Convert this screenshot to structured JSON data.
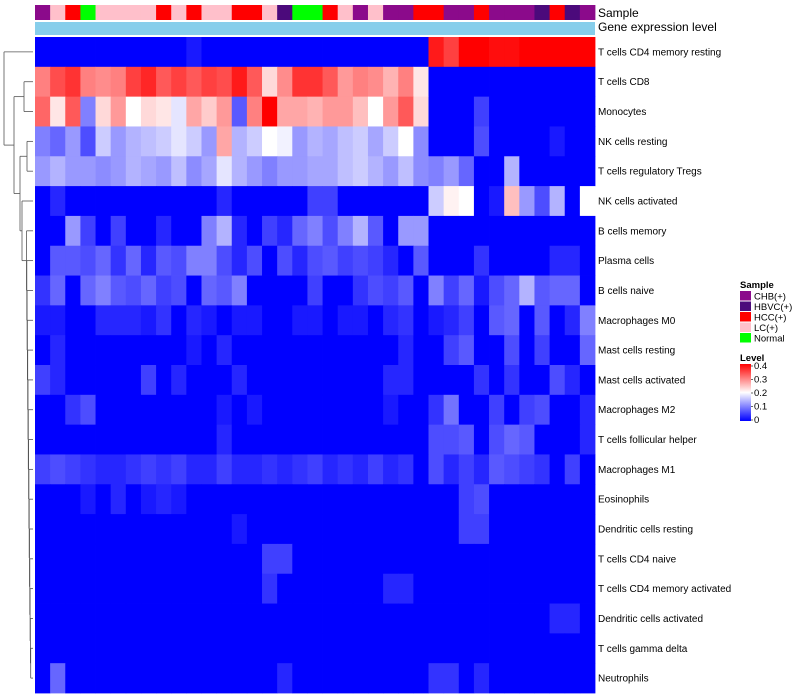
{
  "chart_data": {
    "type": "heatmap",
    "annotation_row_labels": [
      "Sample",
      "Gene expression level"
    ],
    "rows": [
      "T cells CD4 memory resting",
      "T cells CD8",
      "Monocytes",
      "NK cells resting",
      "T cells regulatory  Tregs",
      "NK cells activated",
      "B cells memory",
      "Plasma cells",
      "B cells naive",
      "Macrophages M0",
      "Mast cells resting",
      "Mast cells activated",
      "Macrophages M2",
      "T cells follicular helper",
      "Macrophages M1",
      "Eosinophils",
      "Dendritic cells resting",
      "T cells CD4 naive",
      "T cells CD4 memory activated",
      "Dendritic cells activated",
      "T cells gamma delta",
      "Neutrophils"
    ],
    "sample_groups": [
      {
        "name": "CHB(+)",
        "color": "#8B0A8B"
      },
      {
        "name": "HBVC(+)",
        "color": "#4B0A7B"
      },
      {
        "name": "HCC(+)",
        "color": "#FF0000"
      },
      {
        "name": "LC(+)",
        "color": "#FFC0CB"
      },
      {
        "name": "Normal",
        "color": "#00FF00"
      }
    ],
    "sample_annotation": [
      "CHB(+)",
      "LC(+)",
      "HCC(+)",
      "Normal",
      "LC(+)",
      "LC(+)",
      "LC(+)",
      "LC(+)",
      "HCC(+)",
      "LC(+)",
      "HCC(+)",
      "LC(+)",
      "LC(+)",
      "HCC(+)",
      "HCC(+)",
      "LC(+)",
      "HBVC(+)",
      "Normal",
      "Normal",
      "HCC(+)",
      "LC(+)",
      "CHB(+)",
      "LC(+)",
      "CHB(+)",
      "CHB(+)",
      "HCC(+)",
      "HCC(+)",
      "CHB(+)",
      "CHB(+)",
      "HCC(+)",
      "CHB(+)",
      "CHB(+)",
      "CHB(+)",
      "HBVC(+)",
      "HCC(+)",
      "HBVC(+)",
      "CHB(+)"
    ],
    "gene_expression_color": "#87CEEB",
    "legend": {
      "sample_title": "Sample",
      "level_title": "Level",
      "level_ticks": [
        "0.4",
        "0.3",
        "0.2",
        "0.1",
        "0"
      ],
      "level_range": [
        0,
        0.4
      ],
      "level_colors": [
        "#0000FF",
        "#FFFFFF",
        "#FF0000"
      ]
    },
    "values": [
      [
        0.0,
        0.0,
        0.0,
        0.0,
        0.0,
        0.0,
        0.0,
        0.0,
        0.0,
        0.0,
        0.02,
        0.0,
        0.0,
        0.0,
        0.0,
        0.0,
        0.0,
        0.0,
        0.0,
        0.0,
        0.0,
        0.0,
        0.0,
        0.0,
        0.0,
        0.0,
        0.38,
        0.35,
        0.4,
        0.4,
        0.39,
        0.39,
        0.4,
        0.4,
        0.4,
        0.4,
        0.4
      ],
      [
        0.3,
        0.34,
        0.36,
        0.3,
        0.29,
        0.3,
        0.35,
        0.37,
        0.33,
        0.35,
        0.33,
        0.35,
        0.34,
        0.38,
        0.33,
        0.23,
        0.29,
        0.36,
        0.36,
        0.33,
        0.28,
        0.3,
        0.29,
        0.26,
        0.3,
        0.22,
        0.0,
        0.0,
        0.0,
        0.0,
        0.0,
        0.0,
        0.0,
        0.0,
        0.0,
        0.0,
        0.0
      ],
      [
        0.32,
        0.22,
        0.33,
        0.1,
        0.23,
        0.28,
        0.2,
        0.23,
        0.22,
        0.18,
        0.27,
        0.24,
        0.28,
        0.07,
        0.3,
        0.4,
        0.27,
        0.27,
        0.26,
        0.28,
        0.28,
        0.25,
        0.2,
        0.28,
        0.33,
        0.23,
        0.0,
        0.0,
        0.0,
        0.05,
        0.0,
        0.0,
        0.0,
        0.0,
        0.0,
        0.0,
        0.0
      ],
      [
        0.1,
        0.08,
        0.12,
        0.06,
        0.16,
        0.12,
        0.14,
        0.15,
        0.16,
        0.18,
        0.16,
        0.12,
        0.27,
        0.14,
        0.16,
        0.2,
        0.19,
        0.12,
        0.14,
        0.13,
        0.15,
        0.16,
        0.13,
        0.16,
        0.2,
        0.11,
        0.0,
        0.0,
        0.0,
        0.06,
        0.0,
        0.0,
        0.0,
        0.0,
        0.02,
        0.0,
        0.0
      ],
      [
        0.12,
        0.14,
        0.12,
        0.12,
        0.11,
        0.12,
        0.14,
        0.13,
        0.12,
        0.15,
        0.11,
        0.13,
        0.18,
        0.14,
        0.12,
        0.1,
        0.12,
        0.12,
        0.13,
        0.13,
        0.15,
        0.16,
        0.14,
        0.12,
        0.15,
        0.11,
        0.1,
        0.12,
        0.08,
        0.0,
        0.0,
        0.14,
        0.0,
        0.0,
        0.0,
        0.0,
        0.0
      ],
      [
        0.0,
        0.03,
        0.0,
        0.0,
        0.0,
        0.0,
        0.0,
        0.0,
        0.0,
        0.0,
        0.0,
        0.0,
        0.03,
        0.0,
        0.0,
        0.0,
        0.0,
        0.0,
        0.05,
        0.05,
        0.0,
        0.0,
        0.0,
        0.0,
        0.0,
        0.0,
        0.16,
        0.21,
        0.2,
        0.0,
        0.02,
        0.25,
        0.12,
        0.06,
        0.14,
        0.0,
        0.2
      ],
      [
        0.0,
        0.0,
        0.12,
        0.05,
        0.0,
        0.05,
        0.0,
        0.0,
        0.03,
        0.0,
        0.0,
        0.1,
        0.14,
        0.03,
        0.0,
        0.05,
        0.03,
        0.08,
        0.1,
        0.06,
        0.1,
        0.14,
        0.07,
        0.0,
        0.12,
        0.12,
        0.0,
        0.0,
        0.0,
        0.0,
        0.0,
        0.0,
        0.0,
        0.0,
        0.0,
        0.0,
        0.0
      ],
      [
        0.0,
        0.07,
        0.07,
        0.06,
        0.08,
        0.04,
        0.08,
        0.03,
        0.07,
        0.06,
        0.1,
        0.1,
        0.06,
        0.03,
        0.06,
        0.0,
        0.06,
        0.03,
        0.06,
        0.07,
        0.05,
        0.06,
        0.05,
        0.03,
        0.0,
        0.07,
        0.0,
        0.0,
        0.0,
        0.04,
        0.0,
        0.0,
        0.0,
        0.0,
        0.03,
        0.03,
        0.0
      ],
      [
        0.04,
        0.08,
        0.0,
        0.08,
        0.1,
        0.07,
        0.06,
        0.08,
        0.05,
        0.06,
        0.0,
        0.08,
        0.07,
        0.1,
        0.0,
        0.0,
        0.0,
        0.0,
        0.05,
        0.0,
        0.0,
        0.04,
        0.06,
        0.05,
        0.07,
        0.0,
        0.1,
        0.05,
        0.08,
        0.02,
        0.06,
        0.08,
        0.14,
        0.07,
        0.08,
        0.08,
        0.0
      ],
      [
        0.02,
        0.02,
        0.0,
        0.0,
        0.03,
        0.03,
        0.03,
        0.02,
        0.04,
        0.0,
        0.03,
        0.02,
        0.0,
        0.02,
        0.02,
        0.0,
        0.0,
        0.02,
        0.02,
        0.0,
        0.02,
        0.02,
        0.0,
        0.03,
        0.04,
        0.0,
        0.02,
        0.03,
        0.05,
        0.0,
        0.07,
        0.08,
        0.0,
        0.07,
        0.0,
        0.03,
        0.1
      ],
      [
        0.0,
        0.03,
        0.0,
        0.0,
        0.0,
        0.0,
        0.0,
        0.0,
        0.0,
        0.0,
        0.02,
        0.0,
        0.03,
        0.0,
        0.0,
        0.0,
        0.0,
        0.0,
        0.0,
        0.0,
        0.0,
        0.0,
        0.0,
        0.0,
        0.03,
        0.0,
        0.0,
        0.05,
        0.07,
        0.0,
        0.0,
        0.06,
        0.0,
        0.05,
        0.0,
        0.0,
        0.08
      ],
      [
        0.05,
        0.03,
        0.0,
        0.0,
        0.0,
        0.0,
        0.0,
        0.05,
        0.0,
        0.03,
        0.0,
        0.0,
        0.0,
        0.03,
        0.0,
        0.0,
        0.0,
        0.0,
        0.0,
        0.0,
        0.0,
        0.0,
        0.0,
        0.03,
        0.03,
        0.0,
        0.0,
        0.0,
        0.0,
        0.04,
        0.0,
        0.04,
        0.0,
        0.0,
        0.06,
        0.03,
        0.0
      ],
      [
        0.0,
        0.0,
        0.04,
        0.06,
        0.0,
        0.0,
        0.0,
        0.0,
        0.0,
        0.0,
        0.0,
        0.0,
        0.02,
        0.0,
        0.02,
        0.0,
        0.0,
        0.0,
        0.0,
        0.0,
        0.0,
        0.0,
        0.0,
        0.02,
        0.0,
        0.0,
        0.04,
        0.09,
        0.0,
        0.0,
        0.05,
        0.0,
        0.05,
        0.06,
        0.0,
        0.0,
        0.03
      ],
      [
        0.0,
        0.0,
        0.0,
        0.0,
        0.0,
        0.0,
        0.0,
        0.0,
        0.0,
        0.0,
        0.0,
        0.0,
        0.03,
        0.0,
        0.0,
        0.0,
        0.0,
        0.0,
        0.0,
        0.0,
        0.0,
        0.0,
        0.0,
        0.0,
        0.0,
        0.0,
        0.06,
        0.06,
        0.07,
        0.0,
        0.06,
        0.08,
        0.07,
        0.0,
        0.0,
        0.0,
        0.03
      ],
      [
        0.05,
        0.06,
        0.05,
        0.04,
        0.03,
        0.03,
        0.04,
        0.05,
        0.04,
        0.05,
        0.03,
        0.03,
        0.05,
        0.03,
        0.03,
        0.04,
        0.03,
        0.04,
        0.05,
        0.03,
        0.04,
        0.03,
        0.05,
        0.03,
        0.04,
        0.0,
        0.06,
        0.03,
        0.05,
        0.03,
        0.07,
        0.06,
        0.05,
        0.04,
        0.0,
        0.05,
        0.0
      ],
      [
        0.0,
        0.0,
        0.0,
        0.02,
        0.0,
        0.03,
        0.0,
        0.02,
        0.03,
        0.02,
        0.0,
        0.0,
        0.0,
        0.0,
        0.0,
        0.0,
        0.0,
        0.0,
        0.0,
        0.0,
        0.0,
        0.0,
        0.0,
        0.0,
        0.0,
        0.0,
        0.0,
        0.0,
        0.05,
        0.06,
        0.0,
        0.0,
        0.0,
        0.0,
        0.0,
        0.0,
        0.0
      ],
      [
        0.0,
        0.0,
        0.0,
        0.0,
        0.0,
        0.0,
        0.0,
        0.0,
        0.0,
        0.0,
        0.0,
        0.0,
        0.0,
        0.02,
        0.0,
        0.0,
        0.0,
        0.0,
        0.0,
        0.0,
        0.0,
        0.0,
        0.0,
        0.0,
        0.0,
        0.0,
        0.0,
        0.0,
        0.05,
        0.05,
        0.0,
        0.0,
        0.0,
        0.0,
        0.0,
        0.0,
        0.0
      ],
      [
        0.0,
        0.0,
        0.0,
        0.0,
        0.0,
        0.0,
        0.0,
        0.0,
        0.0,
        0.0,
        0.0,
        0.0,
        0.0,
        0.0,
        0.0,
        0.05,
        0.05,
        0.0,
        0.0,
        0.0,
        0.0,
        0.0,
        0.0,
        0.0,
        0.0,
        0.0,
        0.0,
        0.0,
        0.0,
        0.0,
        0.0,
        0.0,
        0.0,
        0.0,
        0.0,
        0.0,
        0.0
      ],
      [
        0.0,
        0.0,
        0.0,
        0.0,
        0.0,
        0.0,
        0.0,
        0.0,
        0.0,
        0.0,
        0.0,
        0.0,
        0.0,
        0.0,
        0.0,
        0.04,
        0.0,
        0.0,
        0.0,
        0.0,
        0.0,
        0.0,
        0.0,
        0.03,
        0.03,
        0.0,
        0.0,
        0.0,
        0.0,
        0.0,
        0.0,
        0.0,
        0.0,
        0.0,
        0.0,
        0.0,
        0.0
      ],
      [
        0.0,
        0.0,
        0.0,
        0.0,
        0.0,
        0.0,
        0.0,
        0.0,
        0.0,
        0.0,
        0.0,
        0.0,
        0.0,
        0.0,
        0.0,
        0.0,
        0.0,
        0.0,
        0.0,
        0.0,
        0.0,
        0.0,
        0.0,
        0.0,
        0.0,
        0.0,
        0.0,
        0.0,
        0.0,
        0.0,
        0.0,
        0.0,
        0.0,
        0.0,
        0.03,
        0.03,
        0.0
      ],
      [
        0.0,
        0.0,
        0.0,
        0.0,
        0.0,
        0.0,
        0.0,
        0.0,
        0.0,
        0.0,
        0.0,
        0.0,
        0.0,
        0.0,
        0.0,
        0.0,
        0.0,
        0.0,
        0.0,
        0.0,
        0.0,
        0.0,
        0.0,
        0.0,
        0.0,
        0.0,
        0.0,
        0.0,
        0.0,
        0.0,
        0.0,
        0.0,
        0.0,
        0.0,
        0.0,
        0.0,
        0.0
      ],
      [
        0.0,
        0.08,
        0.0,
        0.0,
        0.0,
        0.0,
        0.0,
        0.0,
        0.0,
        0.0,
        0.0,
        0.0,
        0.0,
        0.0,
        0.0,
        0.0,
        0.03,
        0.0,
        0.0,
        0.0,
        0.0,
        0.0,
        0.0,
        0.0,
        0.0,
        0.0,
        0.04,
        0.04,
        0.0,
        0.03,
        0.0,
        0.0,
        0.0,
        0.0,
        0.0,
        0.0,
        0.0
      ]
    ]
  }
}
